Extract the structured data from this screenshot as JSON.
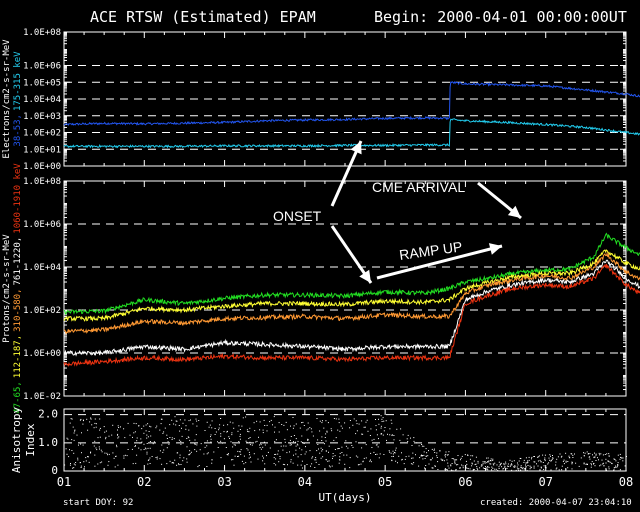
{
  "header": {
    "title": "ACE RTSW (Estimated) EPAM",
    "begin": "Begin: 2000-04-01 00:00:00UT"
  },
  "footer": {
    "start_doy": "start DOY:   92",
    "created": "created:  2000-04-07 23:04:10"
  },
  "colors": {
    "background": "#000000",
    "axes": "#ffffff",
    "electron_low": "#2255ee",
    "electron_high": "#22ccee",
    "p1": "#22dd22",
    "p2": "#ffff33",
    "p3": "#ff9933",
    "p4": "#ffffff",
    "p5": "#ee3311"
  },
  "annotations": {
    "onset": "ONSET",
    "cme": "CME ARRIVAL",
    "ramp": "RAMP UP"
  },
  "chart_data": [
    {
      "type": "line",
      "panel": "electrons",
      "yscale": "log",
      "ylim": [
        1,
        100000000
      ],
      "yticks": [
        "1.0E+00",
        "1.0E+01",
        "1.0E+02",
        "1.0E+03",
        "1.0E+04",
        "1.0E+05",
        "1.0E+06",
        "1.0E+08"
      ],
      "ylabel_parts": [
        {
          "text": "Electrons/cm2-s-sr-MeV",
          "color": "#ffffff"
        },
        {
          "text": "38-53,",
          "color": "#2255ee"
        },
        {
          "text": "175-315 keV",
          "color": "#22ccee"
        }
      ],
      "x": [
        0,
        0.5,
        1,
        1.5,
        2,
        2.5,
        3,
        3.5,
        4,
        4.5,
        4.8,
        4.81,
        5,
        5.5,
        6,
        6.5,
        7,
        7.5,
        8
      ],
      "series": [
        {
          "name": "38-53",
          "color": "#2255ee",
          "values": [
            300,
            350,
            330,
            360,
            400,
            500,
            560,
            600,
            700,
            750,
            700,
            100000,
            80000,
            70000,
            60000,
            35000,
            20000,
            8000,
            1500
          ]
        },
        {
          "name": "175-315 keV",
          "color": "#22ccee",
          "values": [
            15,
            15,
            15,
            15,
            16,
            16,
            16,
            17,
            17,
            18,
            18,
            600,
            500,
            400,
            300,
            200,
            100,
            50,
            25
          ]
        }
      ]
    },
    {
      "type": "line",
      "panel": "protons",
      "yscale": "log",
      "ylim": [
        0.01,
        100000000
      ],
      "yticks": [
        "1.0E-02",
        "1.0E+00",
        "1.0E+02",
        "1.0E+04",
        "1.0E+06",
        "1.0E+08"
      ],
      "ylabel_parts": [
        {
          "text": "Protons/cm2-s-sr-MeV",
          "color": "#ffffff"
        },
        {
          "text": "47-65,",
          "color": "#22dd22"
        },
        {
          "text": "112-187,",
          "color": "#ffff33"
        },
        {
          "text": "310-580,",
          "color": "#ff9933"
        },
        {
          "text": "761-1220,",
          "color": "#ffffff"
        },
        {
          "text": "1060-1910 keV",
          "color": "#ee3311"
        }
      ],
      "x": [
        0,
        0.5,
        1,
        1.5,
        2,
        2.5,
        3,
        3.5,
        4,
        4.5,
        4.8,
        5,
        5.3,
        5.6,
        6,
        6.3,
        6.6,
        6.75,
        7,
        7.3,
        7.6,
        8
      ],
      "series": [
        {
          "name": "47-65",
          "color": "#22dd22",
          "values": [
            80,
            90,
            300,
            200,
            350,
            500,
            500,
            450,
            700,
            600,
            1000,
            2000,
            3000,
            5000,
            7000,
            8000,
            30000,
            300000,
            80000,
            20000,
            8000,
            6000
          ]
        },
        {
          "name": "112-187",
          "color": "#ffff33",
          "values": [
            40,
            40,
            120,
            100,
            150,
            200,
            200,
            180,
            260,
            230,
            300,
            1000,
            2000,
            3500,
            5000,
            5000,
            15000,
            60000,
            15000,
            5000,
            2000,
            1500
          ]
        },
        {
          "name": "310-580",
          "color": "#ff9933",
          "values": [
            10,
            12,
            30,
            25,
            40,
            45,
            50,
            40,
            60,
            50,
            50,
            600,
            1500,
            2500,
            4000,
            3000,
            10000,
            40000,
            6000,
            1500,
            500,
            400
          ]
        },
        {
          "name": "761-1220",
          "color": "#ffffff",
          "values": [
            1,
            1,
            2,
            1.5,
            3,
            2.5,
            2,
            1.5,
            2,
            2,
            2,
            300,
            800,
            1500,
            2500,
            2000,
            5000,
            20000,
            3000,
            600,
            150,
            120
          ]
        },
        {
          "name": "1060-1910",
          "color": "#ee3311",
          "values": [
            0.3,
            0.4,
            0.6,
            0.5,
            0.7,
            0.6,
            0.6,
            0.5,
            0.6,
            0.6,
            0.6,
            200,
            500,
            1000,
            1500,
            1200,
            3000,
            12000,
            1500,
            300,
            80,
            60
          ]
        }
      ]
    },
    {
      "type": "scatter",
      "panel": "anisotropy",
      "ylim": [
        0,
        2.2
      ],
      "yticks": [
        "0",
        "1.0",
        "2.0"
      ],
      "ylabel_parts": [
        {
          "text": "Anisotropy",
          "color": "#ffffff"
        },
        {
          "text": "Index",
          "color": "#ffffff"
        }
      ],
      "xlabel": "UT(days)",
      "xticks": [
        "01",
        "02",
        "03",
        "04",
        "05",
        "06",
        "07",
        "08"
      ],
      "xlim": [
        0,
        7
      ],
      "x": [
        0,
        0.5,
        1,
        1.5,
        2,
        2.5,
        3,
        3.5,
        4,
        4.5,
        5,
        5.5,
        6,
        6.5,
        7
      ],
      "values_center": [
        1.0,
        1.0,
        1.0,
        1.1,
        1.0,
        1.1,
        1.0,
        1.0,
        1.2,
        0.5,
        0.3,
        0.2,
        0.3,
        0.4,
        0.3
      ],
      "values_spread": [
        0.9,
        0.9,
        0.8,
        0.9,
        0.9,
        0.9,
        0.9,
        0.9,
        0.8,
        0.4,
        0.3,
        0.2,
        0.3,
        0.3,
        0.3
      ]
    }
  ]
}
